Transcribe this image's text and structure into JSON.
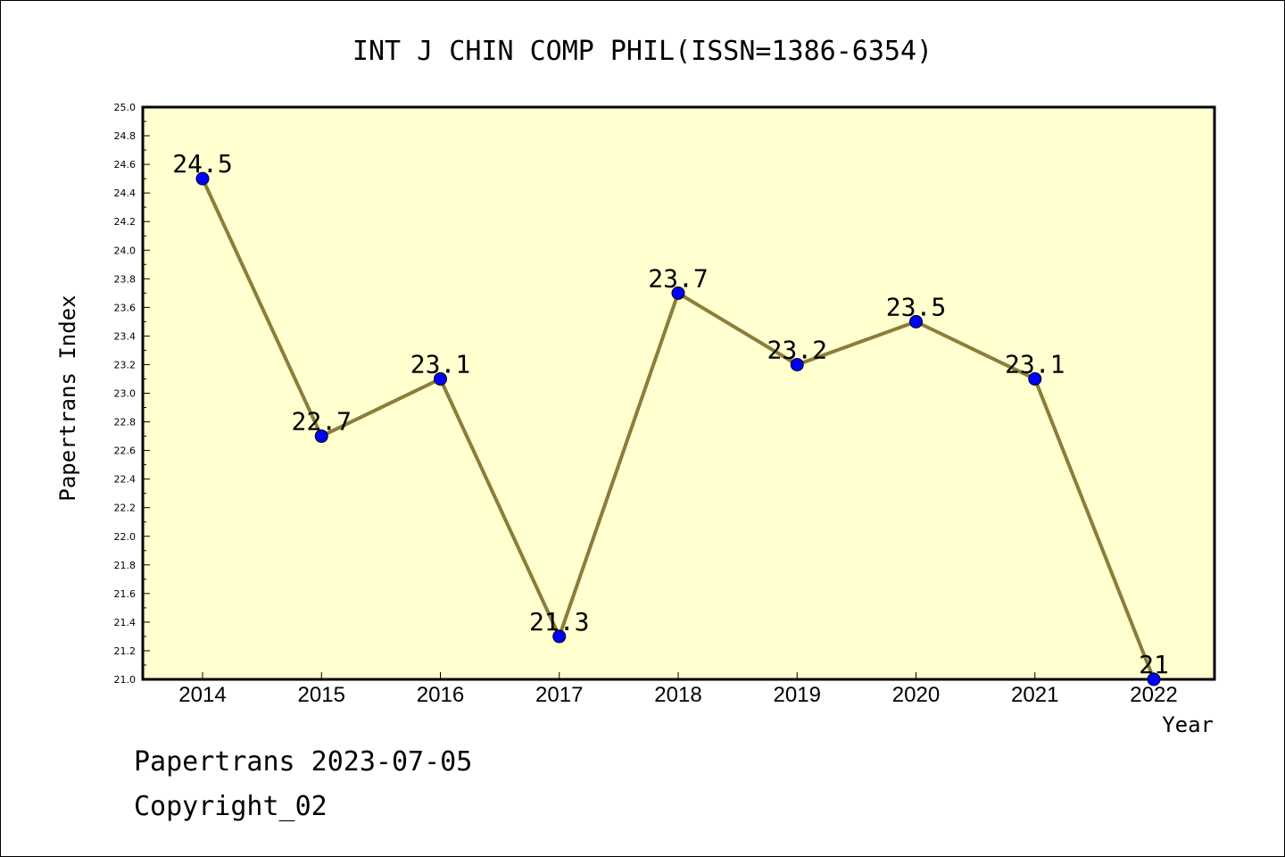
{
  "chart_data": {
    "type": "line",
    "title": "INT J CHIN COMP PHIL(ISSN=1386-6354)",
    "xlabel": "Year",
    "ylabel": "Papertrans Index",
    "categories": [
      "2014",
      "2015",
      "2016",
      "2017",
      "2018",
      "2019",
      "2020",
      "2021",
      "2022"
    ],
    "values": [
      24.5,
      22.7,
      23.1,
      21.3,
      23.7,
      23.2,
      23.5,
      23.1,
      21
    ],
    "data_labels": [
      "24.5",
      "22.7",
      "23.1",
      "21.3",
      "23.7",
      "23.2",
      "23.5",
      "23.1",
      "21"
    ],
    "ylim": [
      21.0,
      25.0
    ],
    "y_ticks": [
      "21.0",
      "21.2",
      "21.4",
      "21.6",
      "21.8",
      "22.0",
      "22.2",
      "22.4",
      "22.6",
      "22.8",
      "23.0",
      "23.2",
      "23.4",
      "23.6",
      "23.8",
      "24.0",
      "24.2",
      "24.4",
      "24.6",
      "24.8",
      "25.0"
    ],
    "grid": false,
    "colors": {
      "plot_background": "#ffffd0",
      "line": "#8b7d3a",
      "marker": "#0000ff"
    }
  },
  "footer": {
    "date_text": "Papertrans 2023-07-05",
    "copyright_text": "Copyright_02"
  }
}
